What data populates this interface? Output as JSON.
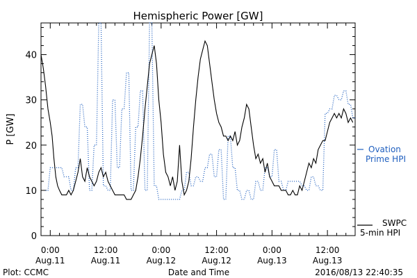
{
  "chart_data": {
    "type": "line",
    "title": "Hemispheric Power [GW]",
    "xlabel": "Date and Time",
    "ylabel": "P [GW]",
    "ylim": [
      0,
      47
    ],
    "xlim_hours": [
      -2,
      66
    ],
    "grid": false,
    "y_ticks": [
      0,
      10,
      20,
      30,
      40
    ],
    "x_ticks": [
      {
        "h": 0,
        "l1": "0:00",
        "l2": "Aug.11"
      },
      {
        "h": 12,
        "l1": "12:00",
        "l2": "Aug.11"
      },
      {
        "h": 24,
        "l1": "0:00",
        "l2": "Aug.12"
      },
      {
        "h": 36,
        "l1": "12:00",
        "l2": "Aug.12"
      },
      {
        "h": 48,
        "l1": "0:00",
        "l2": "Aug.13"
      },
      {
        "h": 60,
        "l1": "12:00",
        "l2": "Aug.13"
      }
    ],
    "footer_left": "Plot: CCMC",
    "footer_right": "2016/08/13 22:40:35",
    "series": [
      {
        "name": "SWPC 5-min HPI",
        "legend_line1": "SWPC",
        "legend_line2": "5-min HPI",
        "color": "#000000",
        "style": "solid",
        "points": [
          [
            -2,
            40
          ],
          [
            -1.5,
            37
          ],
          [
            -1,
            33
          ],
          [
            -0.5,
            28
          ],
          [
            0,
            25
          ],
          [
            0.4,
            22
          ],
          [
            0.8,
            17
          ],
          [
            1.2,
            13
          ],
          [
            1.6,
            11
          ],
          [
            2,
            10
          ],
          [
            2.5,
            9
          ],
          [
            3,
            9
          ],
          [
            3.5,
            9
          ],
          [
            4,
            10
          ],
          [
            4.5,
            9
          ],
          [
            5,
            10
          ],
          [
            5.5,
            12
          ],
          [
            6,
            14
          ],
          [
            6.5,
            17
          ],
          [
            7,
            13
          ],
          [
            7.5,
            12
          ],
          [
            8,
            15
          ],
          [
            8.5,
            13
          ],
          [
            9,
            12
          ],
          [
            9.5,
            11
          ],
          [
            10,
            12
          ],
          [
            10.5,
            14
          ],
          [
            11,
            15
          ],
          [
            11.5,
            13
          ],
          [
            12,
            14
          ],
          [
            12.5,
            12
          ],
          [
            13,
            11
          ],
          [
            13.5,
            10
          ],
          [
            14,
            9
          ],
          [
            14.5,
            9
          ],
          [
            15,
            9
          ],
          [
            15.5,
            9
          ],
          [
            16,
            9
          ],
          [
            16.5,
            8
          ],
          [
            17,
            8
          ],
          [
            17.5,
            8
          ],
          [
            18,
            9
          ],
          [
            18.5,
            10
          ],
          [
            19,
            13
          ],
          [
            19.5,
            17
          ],
          [
            20,
            22
          ],
          [
            20.5,
            28
          ],
          [
            21,
            33
          ],
          [
            21.5,
            38
          ],
          [
            22,
            40
          ],
          [
            22.5,
            42
          ],
          [
            23,
            38
          ],
          [
            23.5,
            30
          ],
          [
            24,
            25
          ],
          [
            24.5,
            18
          ],
          [
            25,
            14
          ],
          [
            25.5,
            13
          ],
          [
            26,
            11
          ],
          [
            26.5,
            13
          ],
          [
            27,
            10
          ],
          [
            27.5,
            12
          ],
          [
            28,
            20
          ],
          [
            28.5,
            12
          ],
          [
            29,
            9
          ],
          [
            29.5,
            10
          ],
          [
            30,
            12
          ],
          [
            30.5,
            17
          ],
          [
            31,
            24
          ],
          [
            31.5,
            30
          ],
          [
            32,
            35
          ],
          [
            32.5,
            39
          ],
          [
            33,
            41
          ],
          [
            33.5,
            43
          ],
          [
            34,
            42
          ],
          [
            34.5,
            38
          ],
          [
            35,
            34
          ],
          [
            35.5,
            30
          ],
          [
            36,
            27
          ],
          [
            36.5,
            25
          ],
          [
            37,
            24
          ],
          [
            37.5,
            22
          ],
          [
            38,
            22
          ],
          [
            38.5,
            21
          ],
          [
            39,
            22
          ],
          [
            39.5,
            21
          ],
          [
            40,
            23
          ],
          [
            40.5,
            20
          ],
          [
            41,
            21
          ],
          [
            41.5,
            24
          ],
          [
            42,
            26
          ],
          [
            42.5,
            29
          ],
          [
            43,
            28
          ],
          [
            43.5,
            24
          ],
          [
            44,
            20
          ],
          [
            44.5,
            17
          ],
          [
            45,
            18
          ],
          [
            45.5,
            16
          ],
          [
            46,
            17
          ],
          [
            46.5,
            14
          ],
          [
            47,
            16
          ],
          [
            47.5,
            13
          ],
          [
            48,
            12
          ],
          [
            48.5,
            11
          ],
          [
            49,
            11
          ],
          [
            49.5,
            11
          ],
          [
            50,
            10
          ],
          [
            50.5,
            10
          ],
          [
            51,
            10
          ],
          [
            51.5,
            9
          ],
          [
            52,
            9
          ],
          [
            52.5,
            10
          ],
          [
            53,
            9
          ],
          [
            53.5,
            9
          ],
          [
            54,
            11
          ],
          [
            54.5,
            10
          ],
          [
            55,
            12
          ],
          [
            55.5,
            14
          ],
          [
            56,
            16
          ],
          [
            56.5,
            15
          ],
          [
            57,
            17
          ],
          [
            57.5,
            16
          ],
          [
            58,
            19
          ],
          [
            58.5,
            20
          ],
          [
            59,
            21
          ],
          [
            59.5,
            21
          ],
          [
            60,
            23
          ],
          [
            60.5,
            25
          ],
          [
            61,
            26
          ],
          [
            61.5,
            27
          ],
          [
            62,
            26
          ],
          [
            62.5,
            27
          ],
          [
            63,
            26
          ],
          [
            63.5,
            28
          ],
          [
            64,
            27
          ],
          [
            64.5,
            25
          ],
          [
            65,
            26
          ],
          [
            65.5,
            25
          ]
        ]
      },
      {
        "name": "Ovation Prime HPI",
        "legend_line1": "Ovation",
        "legend_line2": "Prime HPI",
        "color": "#1f5fbf",
        "style": "dotted",
        "points": [
          [
            -1,
            10
          ],
          [
            -0.5,
            10
          ],
          [
            0,
            15
          ],
          [
            2,
            15
          ],
          [
            2.5,
            15
          ],
          [
            3,
            13
          ],
          [
            4,
            13
          ],
          [
            4.5,
            10
          ],
          [
            5,
            10
          ],
          [
            5.5,
            15
          ],
          [
            6,
            15
          ],
          [
            6.5,
            29
          ],
          [
            7,
            29
          ],
          [
            7.5,
            24
          ],
          [
            8,
            24
          ],
          [
            8.5,
            10
          ],
          [
            9,
            10
          ],
          [
            9.5,
            20
          ],
          [
            10,
            20
          ],
          [
            10.5,
            47
          ],
          [
            11,
            47
          ],
          [
            11.5,
            11
          ],
          [
            12,
            11
          ],
          [
            12.5,
            10
          ],
          [
            13,
            10
          ],
          [
            13.5,
            30
          ],
          [
            14,
            30
          ],
          [
            14.5,
            15
          ],
          [
            15,
            15
          ],
          [
            15.5,
            28
          ],
          [
            16,
            28
          ],
          [
            16.5,
            36
          ],
          [
            17,
            36
          ],
          [
            17.5,
            10
          ],
          [
            18,
            10
          ],
          [
            18.5,
            24
          ],
          [
            19,
            24
          ],
          [
            19.5,
            32
          ],
          [
            20,
            32
          ],
          [
            20.5,
            10
          ],
          [
            21,
            10
          ],
          [
            21.5,
            47
          ],
          [
            22,
            47
          ],
          [
            22.5,
            11
          ],
          [
            23,
            11
          ],
          [
            23.5,
            8
          ],
          [
            24,
            8
          ],
          [
            26,
            8
          ],
          [
            28,
            8
          ],
          [
            28.5,
            10
          ],
          [
            29,
            10
          ],
          [
            29.5,
            14
          ],
          [
            30,
            14
          ],
          [
            30.5,
            11
          ],
          [
            31,
            11
          ],
          [
            31.5,
            13
          ],
          [
            32,
            13
          ],
          [
            32.5,
            12
          ],
          [
            33,
            12
          ],
          [
            33.5,
            15
          ],
          [
            34,
            15
          ],
          [
            34.5,
            18
          ],
          [
            35,
            18
          ],
          [
            35.5,
            13
          ],
          [
            36,
            13
          ],
          [
            36.5,
            19
          ],
          [
            37,
            19
          ],
          [
            37.5,
            8
          ],
          [
            38,
            8
          ],
          [
            38.5,
            22
          ],
          [
            39,
            22
          ],
          [
            39.5,
            15
          ],
          [
            40,
            15
          ],
          [
            40.5,
            10
          ],
          [
            41,
            10
          ],
          [
            41.5,
            8
          ],
          [
            42,
            8
          ],
          [
            42.5,
            10
          ],
          [
            43,
            10
          ],
          [
            43.5,
            8
          ],
          [
            44,
            8
          ],
          [
            44.5,
            12
          ],
          [
            45,
            12
          ],
          [
            45.5,
            10
          ],
          [
            46,
            10
          ],
          [
            46.5,
            15
          ],
          [
            47,
            15
          ],
          [
            47.5,
            13
          ],
          [
            48,
            13
          ],
          [
            48.5,
            19
          ],
          [
            49,
            19
          ],
          [
            49.5,
            12
          ],
          [
            50,
            12
          ],
          [
            50.5,
            10
          ],
          [
            51,
            10
          ],
          [
            51.5,
            12
          ],
          [
            54,
            12
          ],
          [
            54.5,
            11
          ],
          [
            55,
            11
          ],
          [
            55.5,
            10
          ],
          [
            56,
            10
          ],
          [
            56.5,
            13
          ],
          [
            57,
            13
          ],
          [
            57.5,
            11
          ],
          [
            58,
            11
          ],
          [
            58.5,
            10
          ],
          [
            59,
            10
          ],
          [
            59.5,
            27
          ],
          [
            60,
            27
          ],
          [
            60.5,
            28
          ],
          [
            61,
            28
          ],
          [
            61.5,
            31
          ],
          [
            62,
            31
          ],
          [
            62.5,
            30
          ],
          [
            63,
            30
          ],
          [
            63.5,
            32
          ],
          [
            64,
            32
          ],
          [
            64.5,
            29
          ],
          [
            65,
            29
          ],
          [
            65.5,
            26
          ],
          [
            66,
            26
          ]
        ]
      }
    ]
  }
}
